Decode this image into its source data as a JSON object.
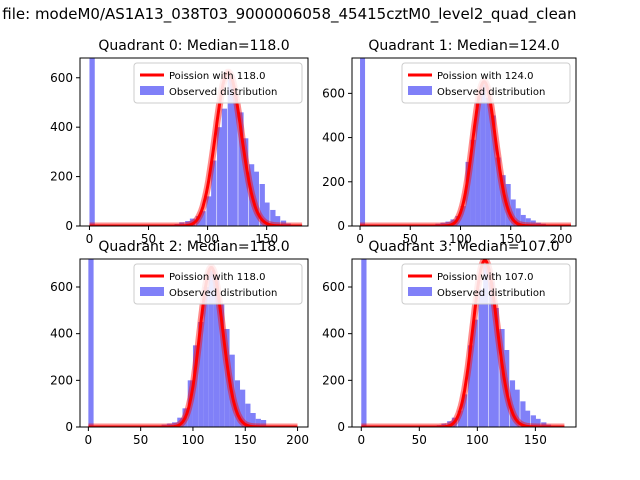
{
  "figure": {
    "title": "n file: modeM0/AS1A13_038T03_9000006058_45415cztM0_level2_quad_clean"
  },
  "chart_data": [
    {
      "type": "bar",
      "title": "Quadrant 0: Median=118.0",
      "xlim": [
        -8,
        185
      ],
      "ylim": [
        0,
        680
      ],
      "xticks": [
        0,
        50,
        100,
        150
      ],
      "yticks": [
        0,
        200,
        400,
        600
      ],
      "legend_position": "upper right",
      "series": [
        {
          "name": "Poission with 118.0",
          "kind": "line",
          "color": "#ff0000",
          "lambda": 118.0,
          "x_range": [
            0,
            180
          ]
        },
        {
          "name": "Observed distribution",
          "kind": "histogram",
          "color": "#8080f8",
          "bin_width": 4.5,
          "bins": [
            [
              0,
              680
            ],
            [
              58,
              3
            ],
            [
              63,
              4
            ],
            [
              67,
              6
            ],
            [
              72,
              8
            ],
            [
              76,
              15
            ],
            [
              81,
              20
            ],
            [
              85,
              30
            ],
            [
              90,
              40
            ],
            [
              94,
              60
            ],
            [
              99,
              120
            ],
            [
              103,
              265
            ],
            [
              108,
              400
            ],
            [
              112,
              475
            ],
            [
              117,
              610
            ],
            [
              121,
              540
            ],
            [
              126,
              460
            ],
            [
              130,
              355
            ],
            [
              135,
              250
            ],
            [
              139,
              220
            ],
            [
              144,
              170
            ],
            [
              148,
              95
            ],
            [
              153,
              65
            ],
            [
              157,
              40
            ],
            [
              162,
              22
            ],
            [
              166,
              10
            ],
            [
              171,
              5
            ]
          ]
        }
      ]
    },
    {
      "type": "bar",
      "title": "Quadrant 1: Median=124.0",
      "xlim": [
        -8,
        215
      ],
      "ylim": [
        0,
        760
      ],
      "xticks": [
        0,
        50,
        100,
        150,
        200
      ],
      "yticks": [
        0,
        200,
        400,
        600
      ],
      "legend_position": "upper right",
      "series": [
        {
          "name": "Poission with 124.0",
          "kind": "line",
          "color": "#ff0000",
          "lambda": 124.0,
          "x_range": [
            0,
            210
          ]
        },
        {
          "name": "Observed distribution",
          "kind": "histogram",
          "color": "#8080f8",
          "bin_width": 5,
          "bins": [
            [
              0,
              760
            ],
            [
              70,
              5
            ],
            [
              75,
              10
            ],
            [
              80,
              15
            ],
            [
              85,
              20
            ],
            [
              90,
              30
            ],
            [
              95,
              45
            ],
            [
              100,
              90
            ],
            [
              105,
              290
            ],
            [
              110,
              390
            ],
            [
              115,
              555
            ],
            [
              120,
              640
            ],
            [
              125,
              580
            ],
            [
              130,
              500
            ],
            [
              135,
              310
            ],
            [
              140,
              230
            ],
            [
              145,
              190
            ],
            [
              150,
              120
            ],
            [
              155,
              80
            ],
            [
              160,
              50
            ],
            [
              165,
              35
            ],
            [
              170,
              25
            ],
            [
              175,
              15
            ],
            [
              180,
              10
            ],
            [
              185,
              5
            ]
          ]
        }
      ]
    },
    {
      "type": "bar",
      "title": "Quadrant 2: Median=118.0",
      "xlim": [
        -8,
        210
      ],
      "ylim": [
        0,
        720
      ],
      "xticks": [
        0,
        50,
        100,
        150,
        200
      ],
      "yticks": [
        0,
        200,
        400,
        600
      ],
      "legend_position": "upper right",
      "series": [
        {
          "name": "Poission with 118.0",
          "kind": "line",
          "color": "#ff0000",
          "lambda": 118.0,
          "x_range": [
            0,
            200
          ]
        },
        {
          "name": "Observed distribution",
          "kind": "histogram",
          "color": "#8080f8",
          "bin_width": 5,
          "bins": [
            [
              0,
              720
            ],
            [
              65,
              5
            ],
            [
              70,
              10
            ],
            [
              75,
              15
            ],
            [
              80,
              20
            ],
            [
              85,
              40
            ],
            [
              90,
              80
            ],
            [
              95,
              200
            ],
            [
              100,
              350
            ],
            [
              105,
              450
            ],
            [
              110,
              600
            ],
            [
              115,
              670
            ],
            [
              120,
              650
            ],
            [
              125,
              525
            ],
            [
              130,
              420
            ],
            [
              135,
              310
            ],
            [
              140,
              200
            ],
            [
              145,
              160
            ],
            [
              150,
              100
            ],
            [
              155,
              60
            ],
            [
              160,
              35
            ],
            [
              165,
              30
            ]
          ]
        }
      ]
    },
    {
      "type": "bar",
      "title": "Quadrant 3: Median=107.0",
      "xlim": [
        -8,
        185
      ],
      "ylim": [
        0,
        720
      ],
      "xticks": [
        0,
        50,
        100,
        150
      ],
      "yticks": [
        0,
        200,
        400,
        600
      ],
      "legend_position": "upper right",
      "series": [
        {
          "name": "Poission with 107.0",
          "kind": "line",
          "color": "#ff0000",
          "lambda": 107.0,
          "x_range": [
            0,
            175
          ]
        },
        {
          "name": "Observed distribution",
          "kind": "histogram",
          "color": "#8080f8",
          "bin_width": 4.5,
          "bins": [
            [
              0,
              720
            ],
            [
              60,
              5
            ],
            [
              65,
              8
            ],
            [
              69,
              15
            ],
            [
              74,
              25
            ],
            [
              78,
              40
            ],
            [
              83,
              70
            ],
            [
              87,
              140
            ],
            [
              92,
              350
            ],
            [
              96,
              460
            ],
            [
              101,
              590
            ],
            [
              105,
              700
            ],
            [
              110,
              620
            ],
            [
              114,
              510
            ],
            [
              119,
              420
            ],
            [
              123,
              330
            ],
            [
              128,
              200
            ],
            [
              132,
              160
            ],
            [
              137,
              110
            ],
            [
              141,
              70
            ],
            [
              146,
              50
            ],
            [
              150,
              35
            ],
            [
              155,
              20
            ],
            [
              159,
              10
            ]
          ]
        }
      ]
    }
  ]
}
